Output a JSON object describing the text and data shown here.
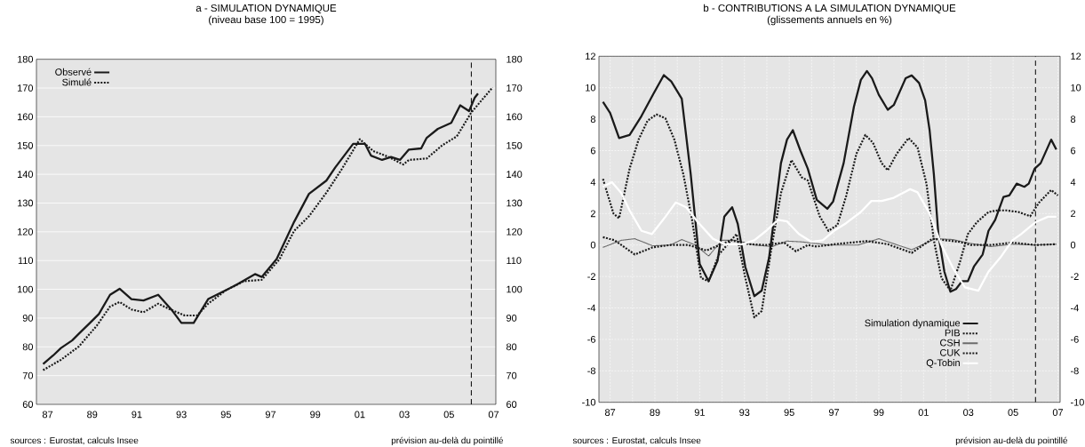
{
  "chart_data": [
    {
      "type": "line",
      "title": "a - SIMULATION DYNAMIQUE",
      "subtitle": "(niveau base 100 = 1995)",
      "xlim": [
        1986.5,
        2007.1
      ],
      "ylim": [
        60,
        180
      ],
      "y2lim": [
        60,
        180
      ],
      "xticks": [
        {
          "value": 1987,
          "label": "87"
        },
        {
          "value": 1989,
          "label": "89"
        },
        {
          "value": 1991,
          "label": "91"
        },
        {
          "value": 1993,
          "label": "93"
        },
        {
          "value": 1995,
          "label": "95"
        },
        {
          "value": 1997,
          "label": "97"
        },
        {
          "value": 1999,
          "label": "99"
        },
        {
          "value": 2001,
          "label": "01"
        },
        {
          "value": 2003,
          "label": "03"
        },
        {
          "value": 2005,
          "label": "05"
        },
        {
          "value": 2007,
          "label": "07"
        }
      ],
      "yticks": [
        60,
        70,
        80,
        90,
        100,
        110,
        120,
        130,
        140,
        150,
        160,
        170,
        180
      ],
      "y2ticks": [
        60,
        70,
        80,
        90,
        100,
        110,
        120,
        130,
        140,
        150,
        160,
        170,
        180
      ],
      "grid": "y",
      "legend": "top left",
      "ref_lines": [
        {
          "axis": "x",
          "value": 2006,
          "color": "#000000",
          "line_style": "dashed"
        }
      ],
      "annotations": [
        "sources : Eurostat, calculs Insee",
        "prévision au-delà du pointillé"
      ],
      "series": [
        {
          "name": "Observé",
          "color": "#1a1a1a",
          "line_style": "solid",
          "x": [
            1986.8,
            1987.25,
            1987.6,
            1988.1,
            1988.5,
            1988.9,
            1989.3,
            1989.8,
            1990.23,
            1990.76,
            1991.3,
            1991.96,
            1992.6,
            1993.0,
            1993.55,
            1994.2,
            1995.0,
            1995.5,
            1996.3,
            1996.6,
            1997.27,
            1998.05,
            1998.72,
            1999.5,
            1999.9,
            2000.7,
            2001.23,
            2001.5,
            2002.0,
            2002.4,
            2002.8,
            2003.2,
            2003.75,
            2004.0,
            2004.5,
            2005.1,
            2005.5,
            2005.9,
            2006.15,
            2006.3
          ],
          "values": [
            74,
            77,
            79.6,
            82.2,
            85.3,
            88.3,
            91.4,
            98.1,
            100.2,
            96.6,
            96.1,
            98.1,
            92.5,
            88.3,
            88.3,
            96.6,
            99.7,
            101.7,
            105.3,
            104.3,
            110.5,
            123.4,
            133.2,
            137.8,
            142.4,
            150.6,
            150.6,
            146.5,
            145,
            146,
            145,
            148.6,
            149,
            152.7,
            155.8,
            157.9,
            164,
            162,
            166.6,
            168.1
          ]
        },
        {
          "name": "Simulé",
          "color": "#1a1a1a",
          "line_style": "dashed",
          "x": [
            1986.8,
            1987.6,
            1988.4,
            1989.2,
            1989.8,
            1990.23,
            1990.76,
            1991.3,
            1991.96,
            1992.5,
            1993.15,
            1993.7,
            1994.2,
            1995.0,
            1995.8,
            1996.6,
            1997.4,
            1998.05,
            1998.72,
            1999.5,
            2000.2,
            2001.0,
            2001.6,
            2002.3,
            2002.95,
            2003.2,
            2004.0,
            2004.7,
            2005.35,
            2006.0,
            2006.95
          ],
          "values": [
            71.9,
            75.5,
            80.1,
            87.3,
            94,
            95.6,
            93,
            92,
            95,
            93,
            90.9,
            90.9,
            95,
            99.7,
            102.8,
            103.3,
            110.5,
            120.3,
            125.4,
            133.6,
            141.9,
            152.2,
            148.1,
            146,
            143.4,
            145,
            145.5,
            150.1,
            153.2,
            161.5,
            170.2
          ]
        }
      ]
    },
    {
      "type": "line",
      "title": "b - CONTRIBUTIONS A LA SIMULATION DYNAMIQUE",
      "subtitle": "(glissements annuels en %)",
      "xlim": [
        1986.5,
        2007.1
      ],
      "ylim": [
        -10,
        12
      ],
      "y2lim": [
        -10,
        12
      ],
      "xticks": [
        {
          "value": 1987,
          "label": "87"
        },
        {
          "value": 1988,
          "label": null
        },
        {
          "value": 1989,
          "label": "89"
        },
        {
          "value": 1990,
          "label": null
        },
        {
          "value": 1991,
          "label": "91"
        },
        {
          "value": 1992,
          "label": null
        },
        {
          "value": 1993,
          "label": "93"
        },
        {
          "value": 1994,
          "label": null
        },
        {
          "value": 1995,
          "label": "95"
        },
        {
          "value": 1996,
          "label": null
        },
        {
          "value": 1997,
          "label": "97"
        },
        {
          "value": 1998,
          "label": null
        },
        {
          "value": 1999,
          "label": "99"
        },
        {
          "value": 2000,
          "label": null
        },
        {
          "value": 2001,
          "label": "01"
        },
        {
          "value": 2002,
          "label": null
        },
        {
          "value": 2003,
          "label": "03"
        },
        {
          "value": 2004,
          "label": null
        },
        {
          "value": 2005,
          "label": "05"
        },
        {
          "value": 2006,
          "label": null
        },
        {
          "value": 2007,
          "label": "07"
        }
      ],
      "yticks": [
        -10,
        -8,
        -6,
        -4,
        -2,
        0,
        2,
        4,
        6,
        8,
        10,
        12
      ],
      "y2ticks": [
        -10,
        -8,
        -6,
        -4,
        -2,
        0,
        2,
        4,
        6,
        8,
        10,
        12
      ],
      "grid": true,
      "legend": "bottom right",
      "ref_lines": [
        {
          "axis": "x",
          "value": 2006,
          "color": "#000000",
          "line_style": "dashed"
        }
      ],
      "annotations": [
        "sources : Eurostat, calculs Insee",
        "prévision au-delà du pointillé"
      ],
      "series": [
        {
          "name": "Simulation dynamique",
          "color": "#1a1a1a",
          "line_style": "solid",
          "x": [
            1986.68,
            1987.0,
            1987.4,
            1987.87,
            1988.4,
            1988.93,
            1989.4,
            1989.73,
            1990.2,
            1990.6,
            1991.0,
            1991.4,
            1991.8,
            1992.1,
            1992.45,
            1992.7,
            1993.04,
            1993.44,
            1993.77,
            1994.1,
            1994.37,
            1994.63,
            1994.9,
            1995.16,
            1995.5,
            1995.83,
            1996.23,
            1996.7,
            1996.96,
            1997.43,
            1997.89,
            1998.2,
            1998.47,
            1998.7,
            1999.0,
            1999.4,
            1999.67,
            2000.2,
            2000.47,
            2000.8,
            2001.07,
            2001.27,
            2001.46,
            2001.66,
            2001.93,
            2002.2,
            2002.45,
            2002.72,
            2002.98,
            2003.25,
            2003.64,
            2003.9,
            2004.2,
            2004.57,
            2004.83,
            2005.16,
            2005.5,
            2005.7,
            2005.96,
            2006.23,
            2006.7,
            2006.93
          ],
          "values": [
            9.1,
            8.4,
            6.8,
            7,
            8.2,
            9.6,
            10.8,
            10.4,
            9.3,
            4.5,
            -1.2,
            -2.3,
            -1,
            1.8,
            2.4,
            1.35,
            -1.4,
            -3.25,
            -2.9,
            -0.8,
            2.2,
            5.2,
            6.7,
            7.3,
            6,
            4.85,
            2.87,
            2.3,
            2.77,
            5.2,
            8.8,
            10.5,
            11.06,
            10.6,
            9.55,
            8.6,
            8.9,
            10.6,
            10.78,
            10.3,
            9.2,
            7.3,
            4.5,
            0.7,
            -1.7,
            -2.97,
            -2.8,
            -2.3,
            -2.3,
            -1.37,
            -0.6,
            0.9,
            1.6,
            3.05,
            3.15,
            3.9,
            3.7,
            3.9,
            4.85,
            5.2,
            6.7,
            6.07
          ]
        },
        {
          "name": "PIB",
          "color": "#1a1a1a",
          "line_style": "dashed",
          "x": [
            1986.68,
            1987.15,
            1987.4,
            1987.87,
            1988.27,
            1988.67,
            1989.07,
            1989.47,
            1989.87,
            1990.27,
            1990.66,
            1991.06,
            1991.4,
            1991.86,
            1992.4,
            1992.65,
            1993.04,
            1993.44,
            1993.77,
            1994.24,
            1994.63,
            1995.1,
            1995.56,
            1995.83,
            1996.36,
            1996.75,
            1997.15,
            1997.55,
            1998.0,
            1998.4,
            1998.74,
            1999.13,
            1999.4,
            1999.8,
            2000.33,
            2000.73,
            2001.13,
            2001.46,
            2001.8,
            2002.2,
            2002.6,
            2002.98,
            2003.38,
            2003.9,
            2004.3,
            2004.7,
            2005.23,
            2005.76,
            2006.16,
            2006.7,
            2007.0
          ],
          "values": [
            4.2,
            2,
            1.7,
            4.85,
            6.7,
            7.9,
            8.3,
            8.05,
            6.7,
            4.5,
            1.6,
            -2.1,
            -2.3,
            -0.6,
            0.3,
            0.7,
            -2.1,
            -4.6,
            -4.2,
            0.1,
            3.3,
            5.4,
            4.3,
            4.1,
            1.83,
            0.9,
            1.27,
            3.15,
            5.8,
            7,
            6.5,
            5.2,
            4.75,
            5.8,
            6.8,
            6.2,
            3.9,
            0.3,
            -2.1,
            -2.9,
            -1.2,
            0.7,
            1.45,
            2.1,
            2.2,
            2.2,
            2.1,
            1.83,
            2.7,
            3.5,
            3.15
          ]
        },
        {
          "name": "CSH",
          "color": "#1a1a1a",
          "line_style": "dotted",
          "x": [
            1986.68,
            1987.5,
            1988.1,
            1988.9,
            1989.7,
            1990.2,
            1990.8,
            1991.4,
            1992.0,
            1992.6,
            1993.44,
            1994.24,
            1994.9,
            1995.56,
            1996.75,
            1998.08,
            1999.0,
            2000.47,
            2001.53,
            2002.3,
            2003.1,
            2004.0,
            2004.97,
            2006.0,
            2006.93
          ],
          "values": [
            -0.15,
            0.3,
            0.4,
            -0.05,
            0,
            0.35,
            0,
            -0.7,
            0.3,
            0.3,
            0,
            -0.1,
            0.25,
            0.2,
            0,
            0,
            0.4,
            -0.3,
            0.4,
            0.35,
            0.1,
            -0.1,
            0.05,
            0,
            0.05
          ]
        },
        {
          "name": "CUK",
          "color": "#1a1a1a",
          "line_style": "dashed",
          "x": [
            1986.68,
            1987.2,
            1988.1,
            1988.9,
            1989.7,
            1990.5,
            1991.3,
            1992.4,
            1993.2,
            1993.97,
            1994.77,
            1995.3,
            1995.83,
            1996.23,
            1997.0,
            1998.47,
            1999.4,
            2000.47,
            2001.4,
            2002.6,
            2003.1,
            2004.0,
            2004.97,
            2006.0,
            2006.93
          ],
          "values": [
            0.5,
            0.3,
            -0.6,
            -0.15,
            0,
            0,
            -0.35,
            0.3,
            0.05,
            0,
            0.15,
            -0.4,
            0,
            -0.1,
            0.05,
            0.25,
            0.05,
            -0.5,
            0.4,
            0.2,
            0,
            0,
            0.15,
            0,
            0.05
          ]
        },
        {
          "name": "Q-Tobin",
          "color": "#ffffff",
          "line_style": "solid",
          "x": [
            1986.68,
            1987.08,
            1987.5,
            1987.87,
            1988.4,
            1988.87,
            1989.47,
            1989.93,
            1990.4,
            1990.92,
            1991.59,
            1992.1,
            1992.9,
            1993.44,
            1993.97,
            1994.5,
            1994.9,
            1995.43,
            1996.0,
            1996.5,
            1997.0,
            1997.55,
            1998.2,
            1998.67,
            1999.13,
            1999.67,
            2000.4,
            2000.73,
            2001.27,
            2001.8,
            2002.33,
            2002.85,
            2003.45,
            2003.9,
            2004.43,
            2004.97,
            2005.36,
            2006.0,
            2006.56,
            2006.93
          ],
          "values": [
            3.7,
            4,
            3.3,
            2.2,
            0.9,
            0.7,
            1.8,
            2.7,
            2.4,
            1.45,
            0.4,
            0.05,
            0.05,
            0.3,
            0.9,
            1.6,
            1.5,
            0.7,
            0.2,
            0.3,
            0.9,
            1.4,
            2.1,
            2.8,
            2.8,
            3,
            3.55,
            3.35,
            2,
            0,
            -1.5,
            -2.7,
            -2.9,
            -1.7,
            -0.8,
            0.3,
            0.7,
            1.45,
            1.8,
            1.8
          ]
        }
      ]
    }
  ]
}
